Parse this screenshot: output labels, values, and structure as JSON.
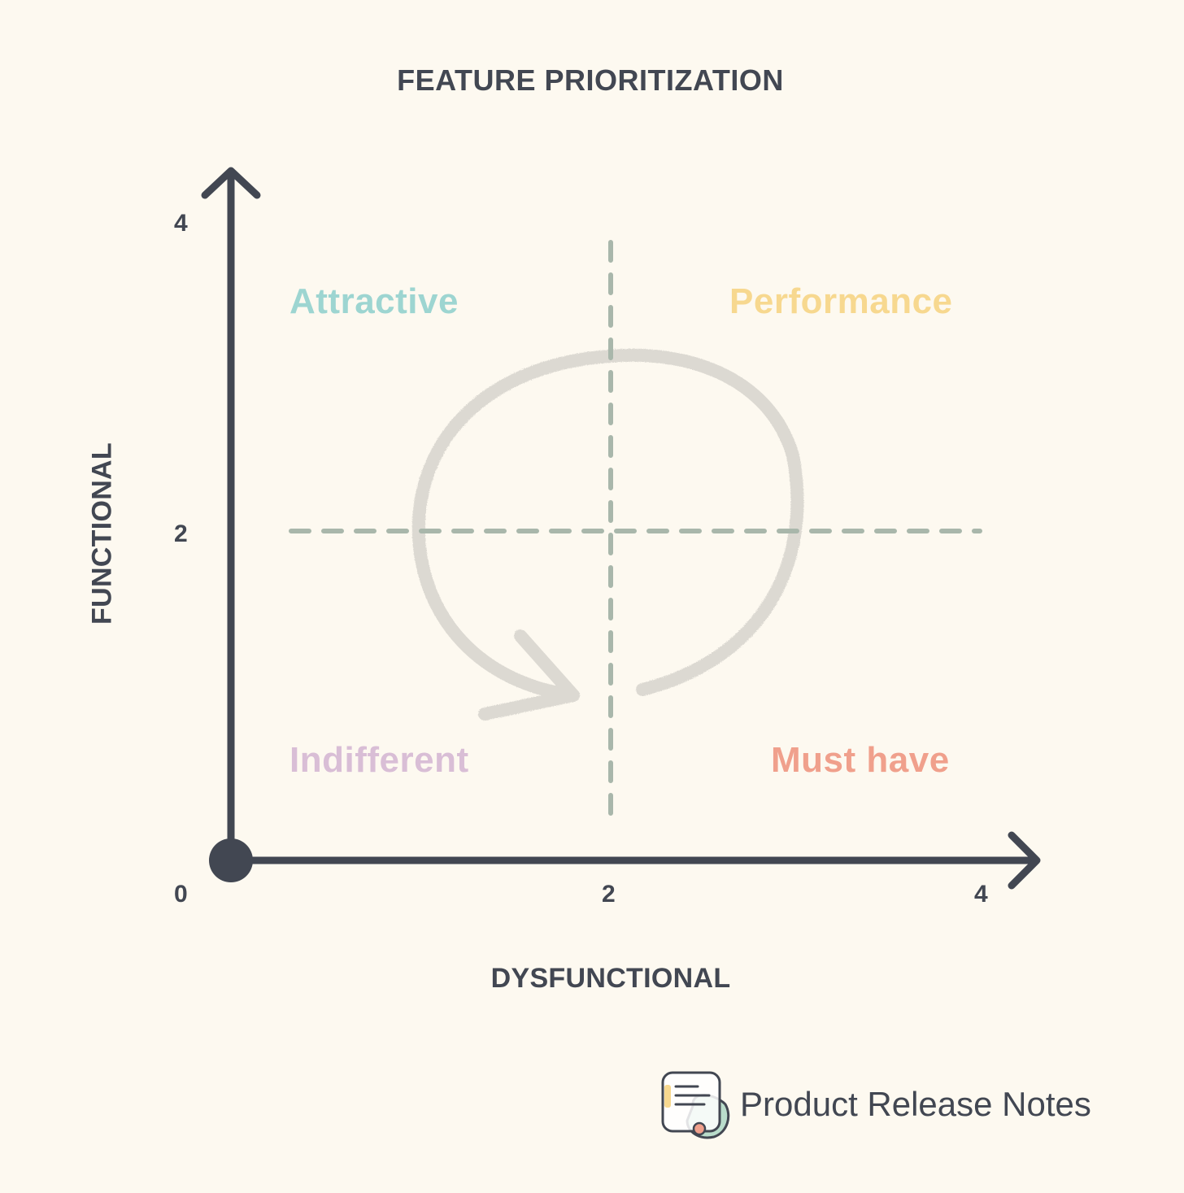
{
  "title": "FEATURE PRIORITIZATION",
  "axes": {
    "x_label": "DYSFUNCTIONAL",
    "y_label": "FUNCTIONAL",
    "x_ticks": [
      "0",
      "2",
      "4"
    ],
    "y_ticks": [
      "4",
      "2"
    ]
  },
  "quadrants": {
    "top_left": "Attractive",
    "top_right": "Performance",
    "bottom_left": "Indifferent",
    "bottom_right": "Must have"
  },
  "brand": {
    "name": "Product Release Notes",
    "icon": "notes-logo-icon"
  },
  "colors": {
    "background": "#fdf9f0",
    "axis": "#424752",
    "divider": "#a9b7ab",
    "attractive": "#9dd5d1",
    "performance": "#f7d88f",
    "indifferent": "#d9bed6",
    "must_have": "#f0a08c",
    "cycle_arrow": "#dcd9d2"
  }
}
